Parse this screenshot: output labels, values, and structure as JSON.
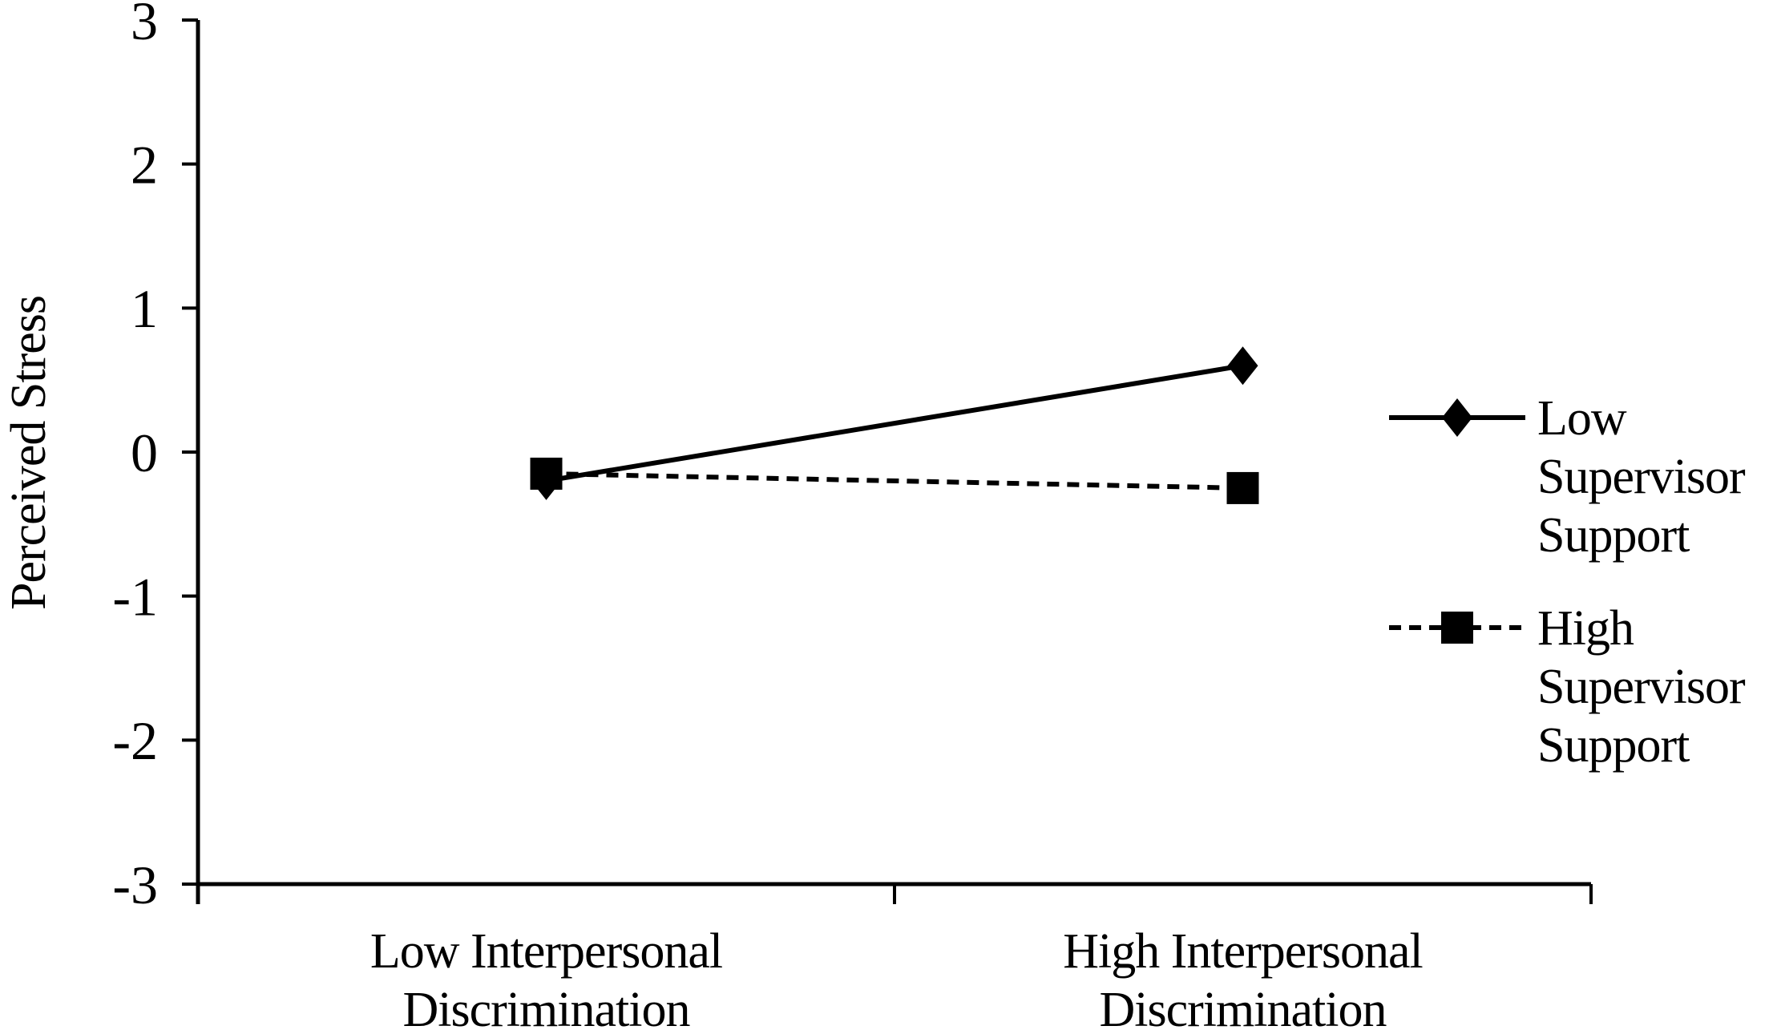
{
  "figure": {
    "background_color": "#ffffff",
    "ink_color": "#000000"
  },
  "chart_data": {
    "type": "line",
    "title": "",
    "xlabel": "",
    "ylabel": "Perceived Stress",
    "categories": [
      "Low Interpersonal Discrimination",
      "High Interpersonal Discrimination"
    ],
    "category_label_lines": [
      [
        "Low Interpersonal",
        "Discrimination"
      ],
      [
        "High Interpersonal",
        "Discrimination"
      ]
    ],
    "series": [
      {
        "name": "Low Supervisor Support",
        "label_lines": [
          "Low",
          "Supervisor",
          "Support"
        ],
        "values": [
          -0.2,
          0.6
        ],
        "line_style": "solid",
        "marker": "diamond",
        "color": "#000000"
      },
      {
        "name": "High Supervisor Support",
        "label_lines": [
          "High",
          "Supervisor",
          "Support"
        ],
        "values": [
          -0.15,
          -0.25
        ],
        "line_style": "dashed",
        "marker": "square",
        "color": "#000000"
      }
    ],
    "ylim": [
      -3,
      3
    ],
    "ytick_values": [
      3,
      2,
      1,
      0,
      -1,
      -2,
      -3
    ],
    "grid": false,
    "legend_position": "right"
  }
}
